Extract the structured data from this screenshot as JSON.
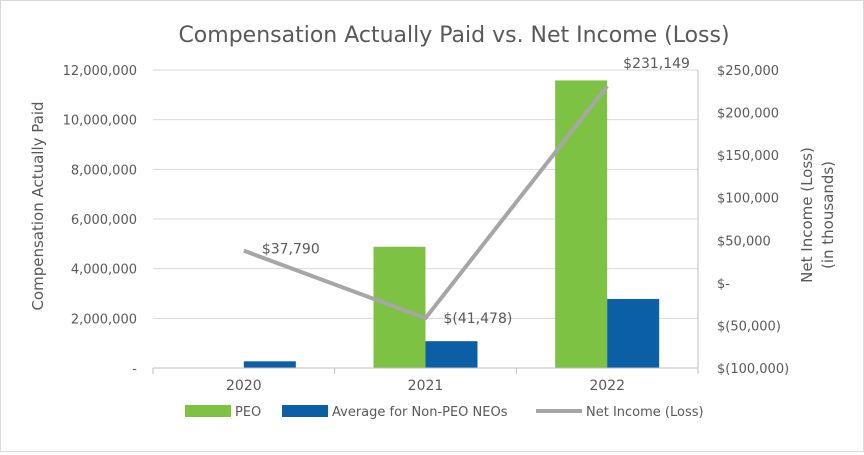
{
  "chart_data": {
    "type": "bar",
    "title": "Compensation Actually Paid vs. Net Income (Loss)",
    "categories": [
      "2020",
      "2021",
      "2022"
    ],
    "ylabel": "Compensation Actually Paid",
    "ylabel_right": [
      "Net Income (Loss)",
      "(in thousands)"
    ],
    "ylim": [
      0,
      12000000
    ],
    "ylim_right": [
      -100000,
      250000
    ],
    "yticks": [
      "-",
      "2,000,000",
      "4,000,000",
      "6,000,000",
      "8,000,000",
      "10,000,000",
      "12,000,000"
    ],
    "yticks_right": [
      "$(100,000)",
      "$(50,000)",
      "$-",
      "$50,000",
      "$100,000",
      "$150,000",
      "$200,000",
      "$250,000"
    ],
    "series": [
      {
        "name": "PEO",
        "type": "bar",
        "color": "#7dc242",
        "values": [
          0,
          4880000,
          11580000
        ]
      },
      {
        "name": "Average for Non-PEO NEOs",
        "type": "bar",
        "color": "#0b5fa5",
        "values": [
          270000,
          1080000,
          2780000
        ]
      },
      {
        "name": "Net Income (Loss)",
        "type": "line",
        "axis": "right",
        "color": "#a6a6a6",
        "values": [
          37790,
          -41478,
          231149
        ],
        "labels": [
          "$37,790",
          "$(41,478)",
          "$231,149"
        ]
      }
    ],
    "grid": true,
    "legend_position": "bottom"
  }
}
